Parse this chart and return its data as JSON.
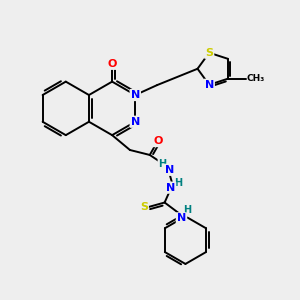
{
  "bg_color": "#eeeeee",
  "bond_color": "#000000",
  "atom_colors": {
    "N": "#0000ff",
    "O": "#ff0000",
    "S": "#cccc00",
    "H": "#008080",
    "C": "#000000"
  },
  "figsize": [
    3.0,
    3.0
  ],
  "dpi": 100
}
